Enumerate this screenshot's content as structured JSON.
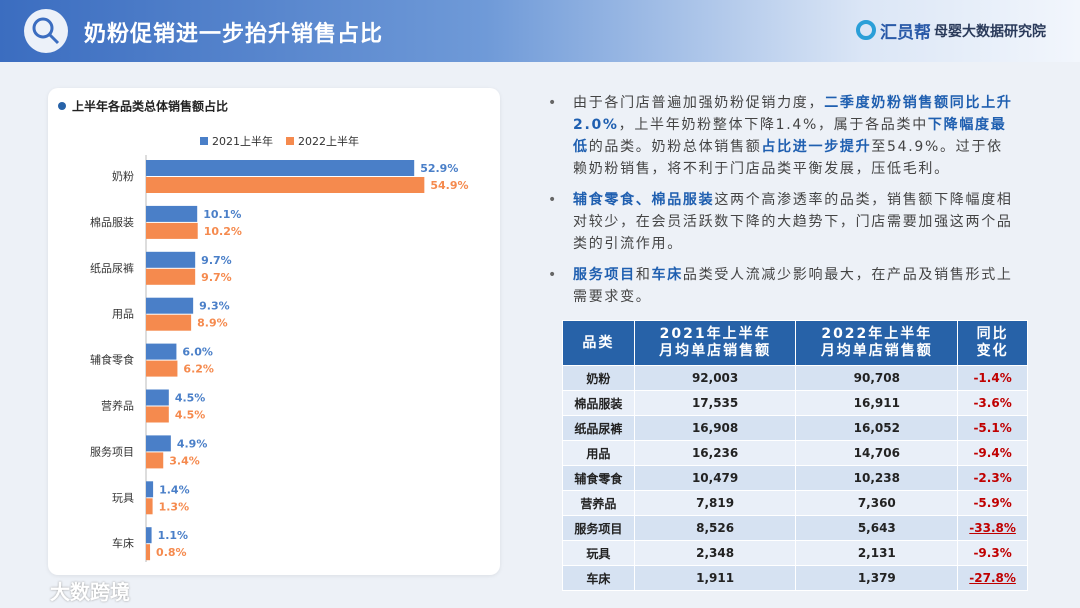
{
  "header": {
    "title": "奶粉促销进一步抬升销售占比",
    "brand": "汇员帮",
    "institute": "母婴大数据研究院"
  },
  "chart_data": {
    "type": "hbar",
    "title": "上半年各品类总体销售额占比",
    "categories": [
      "奶粉",
      "棉品服装",
      "纸品尿裤",
      "用品",
      "辅食零食",
      "营养品",
      "服务项目",
      "玩具",
      "车床"
    ],
    "series": [
      {
        "name": "2021上半年",
        "color": "#4a7fc8",
        "values": [
          52.9,
          10.1,
          9.7,
          9.3,
          6.0,
          4.5,
          4.9,
          1.4,
          1.1
        ],
        "value_labels": [
          "52.9%",
          "10.1%",
          "9.7%",
          "9.3%",
          "6.0%",
          "4.5%",
          "4.9%",
          "1.4%",
          "1.1%"
        ]
      },
      {
        "name": "2022上半年",
        "color": "#f58a4e",
        "values": [
          54.9,
          10.2,
          9.7,
          8.9,
          6.2,
          4.5,
          3.4,
          1.3,
          0.8
        ],
        "value_labels": [
          "54.9%",
          "10.2%",
          "9.7%",
          "8.9%",
          "6.2%",
          "4.5%",
          "3.4%",
          "1.3%",
          "0.8%"
        ]
      }
    ]
  },
  "bullets": [
    [
      {
        "text": "由于各门店普遍加强奶粉促销力度，",
        "emphasis": false
      },
      {
        "text": "二季度奶粉销售额同比上升2.0%",
        "emphasis": true
      },
      {
        "text": "，上半年奶粉整体下降1.4%，属于各品类中",
        "emphasis": false
      },
      {
        "text": "下降幅度最低",
        "emphasis": true
      },
      {
        "text": "的品类。奶粉总体销售额",
        "emphasis": false
      },
      {
        "text": "占比进一步提升",
        "emphasis": true
      },
      {
        "text": "至54.9%。过于依赖奶粉销售，将不利于门店品类平衡发展，压低毛利。",
        "emphasis": false
      }
    ],
    [
      {
        "text": "辅食零食、棉品服装",
        "emphasis": true
      },
      {
        "text": "这两个高渗透率的品类，销售额下降幅度相对较少，在会员活跃数下降的大趋势下，门店需要加强这两个品类的引流作用。",
        "emphasis": false
      }
    ],
    [
      {
        "text": "服务项目",
        "emphasis": true
      },
      {
        "text": "和",
        "emphasis": false
      },
      {
        "text": "车床",
        "emphasis": true
      },
      {
        "text": "品类受人流减少影响最大，在产品及销售形式上需要求变。",
        "emphasis": false
      }
    ]
  ],
  "table": {
    "header": [
      [
        "品类"
      ],
      [
        "2021年上半年",
        "月均单店销售额"
      ],
      [
        "2022年上半年",
        "月均单店销售额"
      ],
      [
        "同比",
        "变化"
      ]
    ],
    "rows": [
      [
        "奶粉",
        "92,003",
        "90,708",
        "-1.4%"
      ],
      [
        "棉品服装",
        "17,535",
        "16,911",
        "-3.6%"
      ],
      [
        "纸品尿裤",
        "16,908",
        "16,052",
        "-5.1%"
      ],
      [
        "用品",
        "16,236",
        "14,706",
        "-9.4%"
      ],
      [
        "辅食零食",
        "10,479",
        "10,238",
        "-2.3%"
      ],
      [
        "营养品",
        "7,819",
        "7,360",
        "-5.9%"
      ],
      [
        "服务项目",
        "8,526",
        "5,643",
        "-33.8%"
      ],
      [
        "玩具",
        "2,348",
        "2,131",
        "-9.3%"
      ],
      [
        "车床",
        "1,911",
        "1,379",
        "-27.8%"
      ]
    ],
    "underlined_rows": [
      6,
      8
    ]
  },
  "watermark": "大数跨境"
}
